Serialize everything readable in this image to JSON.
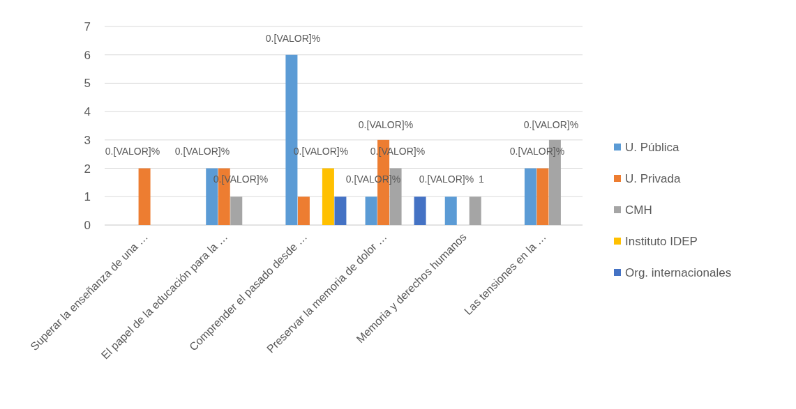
{
  "chart_data": {
    "type": "bar",
    "categories": [
      "Superar la enseñanza de una …",
      "El papel de la educación para la …",
      "Comprender el pasado desde …",
      "Preservar la memoria de dolor …",
      "Memoria y derechos humanos",
      "Las tensiones en la …"
    ],
    "series": [
      {
        "name": "U. Pública",
        "color": "#5b9bd5",
        "values": [
          0,
          2,
          6,
          1,
          1,
          2
        ]
      },
      {
        "name": "U.  Privada",
        "color": "#ed7d31",
        "values": [
          2,
          2,
          1,
          3,
          0,
          2
        ]
      },
      {
        "name": "CMH",
        "color": "#a5a5a5",
        "values": [
          0,
          1,
          0,
          2,
          1,
          3
        ]
      },
      {
        "name": "Instituto IDEP",
        "color": "#ffc000",
        "values": [
          0,
          0,
          2,
          0,
          0,
          0
        ]
      },
      {
        "name": "Org. internacionales",
        "color": "#4472c4",
        "values": [
          0,
          0,
          1,
          1,
          0,
          0
        ]
      }
    ],
    "annotations": [
      "0.[VALOR]%",
      "0.[VALOR]%",
      "0.[VALOR]%",
      "0.[VALOR]%",
      "0.[VALOR]%",
      "0.[VALOR]%",
      "0.[VALOR]%",
      "0.[VALOR]%",
      "0.[VALOR]%",
      "1",
      "0.[VALOR]%",
      "0.[VALOR]%"
    ],
    "ylim": [
      0,
      7
    ],
    "yticks": [
      0,
      1,
      2,
      3,
      4,
      5,
      6,
      7
    ],
    "grid": "y",
    "legend": "right"
  }
}
